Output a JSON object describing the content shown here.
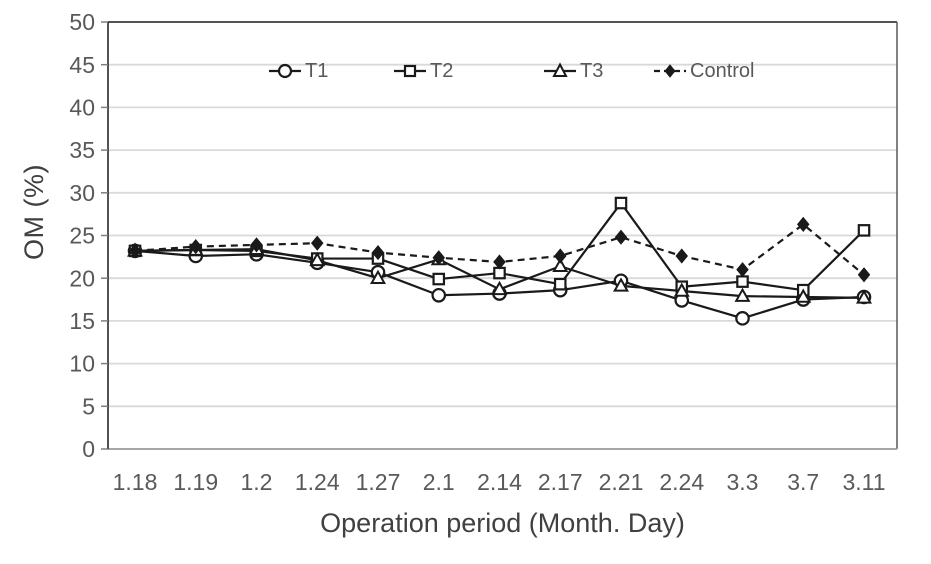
{
  "chart_data": {
    "type": "line",
    "title": "",
    "xlabel": "Operation period (Month. Day)",
    "ylabel": "OM (%)",
    "ylim": [
      0,
      50
    ],
    "ytick_step": 5,
    "grid": "horizontal",
    "legend_position": "top-inside",
    "categories": [
      "1.18",
      "1.19",
      "1.2",
      "1.24",
      "1.27",
      "2.1",
      "2.14",
      "2.17",
      "2.21",
      "2.24",
      "3.3",
      "3.7",
      "3.11"
    ],
    "series": [
      {
        "name": "T1",
        "marker": "circle-open",
        "line": "solid",
        "color": "#1a1a1a",
        "values": [
          23.2,
          22.6,
          22.8,
          21.8,
          20.7,
          18.0,
          18.2,
          18.6,
          19.7,
          17.4,
          15.3,
          17.5,
          17.8
        ]
      },
      {
        "name": "T2",
        "marker": "square-open",
        "line": "solid",
        "color": "#1a1a1a",
        "values": [
          23.2,
          23.3,
          23.2,
          22.3,
          22.3,
          19.9,
          20.6,
          19.3,
          28.8,
          19.0,
          19.6,
          18.6,
          25.6
        ]
      },
      {
        "name": "T3",
        "marker": "triangle-open",
        "line": "solid",
        "color": "#1a1a1a",
        "values": [
          23.2,
          23.3,
          23.4,
          22.1,
          20.0,
          22.2,
          18.7,
          21.4,
          19.1,
          18.5,
          17.9,
          17.8,
          17.7
        ]
      },
      {
        "name": "Control",
        "marker": "diamond-filled",
        "line": "dashed",
        "color": "#1a1a1a",
        "values": [
          23.2,
          23.7,
          23.9,
          24.1,
          23.0,
          22.4,
          21.9,
          22.6,
          24.8,
          22.6,
          21.0,
          26.3,
          20.4
        ]
      }
    ]
  },
  "colors": {
    "axis_text": "#595959",
    "title_text": "#404040",
    "gridline": "#d9d9d9",
    "series_line": "#1a1a1a",
    "border_dark": "#1a1a1a",
    "border_right": "#595959",
    "border_bottom": "#a6a6a6",
    "tick": "#7f7f7f"
  }
}
